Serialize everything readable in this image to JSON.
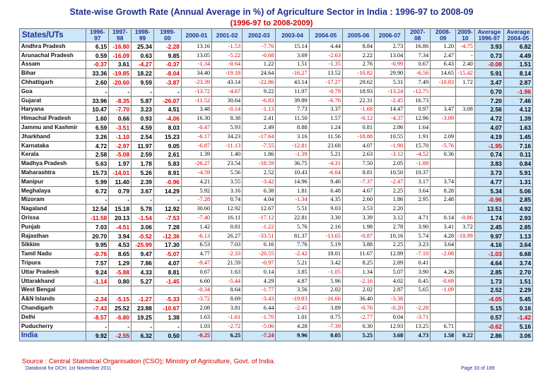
{
  "title": "State-wise Growth Rate (Annual Average in %) of Agriculture Sector in India : 1996-97 to 2008-09",
  "subtitle": "(1996-97 to 2008-2009)",
  "columns": [
    "States/UTs",
    "1996-97",
    "1997-98",
    "1998-99",
    "1999-00",
    "2000-01",
    "2001-02",
    "2002-03",
    "2003-04",
    "2004-05",
    "2005-06",
    "2006-07",
    "2007-08",
    "2008-09",
    "2009-10",
    "Average 1996-97",
    "Average 2004-05"
  ],
  "rows": [
    {
      "name": "Andhra Pradesh",
      "v": [
        "6.15",
        "-16.80",
        "25.34",
        "-2.28",
        "13.16",
        "-1.53",
        "-7.76",
        "15.14",
        "4.44",
        "8.84",
        "2.73",
        "16.86",
        "1.20",
        "-4.75",
        "3.93",
        "6.82"
      ]
    },
    {
      "name": "Arunachal Pradesh",
      "v": [
        "0.59",
        "-16.09",
        "0.63",
        "9.85",
        "13.05",
        "-5.22",
        "-0.68",
        "3.69",
        "-2.63",
        "2.22",
        "13.04",
        "7.34",
        "2.47",
        "-",
        "0.73",
        "4.49"
      ]
    },
    {
      "name": "Assam",
      "v": [
        "-0.37",
        "3.61",
        "-4.27",
        "-0.37",
        "-1.34",
        "-0.64",
        "1.22",
        "1.51",
        "-1.35",
        "2.76",
        "-0.99",
        "0.67",
        "6.43",
        "2.40",
        "-0.08",
        "1.51"
      ]
    },
    {
      "name": "Bihar",
      "v": [
        "33.36",
        "-19.85",
        "18.22",
        "-8.04",
        "34.40",
        "-19.18",
        "24.64",
        "-16.27",
        "13.52",
        "-10.82",
        "29.90",
        "-6.56",
        "14.65",
        "-15.42",
        "5.91",
        "8.14"
      ]
    },
    {
      "name": "Chhattigarh",
      "v": [
        "2.60",
        "-20.60",
        "9.59",
        "-3.87",
        "-23.39",
        "43.14",
        "-22.86",
        "43.14",
        "-17.27",
        "29.62",
        "5.31",
        "7.49",
        "-10.83",
        "1.72",
        "3.47",
        "2.87"
      ]
    },
    {
      "name": "Goa",
      "v": [
        "-",
        "-",
        "-",
        "-",
        "-13.72",
        "-4.67",
        "9.22",
        "11.97",
        "-0.79",
        "18.93",
        "-13.24",
        "-12.75",
        "",
        "",
        "0.70",
        "-1.96"
      ]
    },
    {
      "name": "Gujarat",
      "v": [
        "33.96",
        "-8.35",
        "5.87",
        "-26.07",
        "-11.52",
        "30.64",
        "-6.83",
        "39.89",
        "-6.76",
        "22.31",
        "-2.45",
        "16.73",
        "",
        "",
        "7.20",
        "7.46"
      ]
    },
    {
      "name": "Haryana",
      "v": [
        "10.47",
        "-7.70",
        "3.23",
        "4.51",
        "3.48",
        "-0.14",
        "-1.13",
        "7.73",
        "3.37",
        "-1.68",
        "14.47",
        "0.97",
        "3.47",
        "3.08",
        "2.56",
        "4.12"
      ]
    },
    {
      "name": "Himachal Pradesh",
      "v": [
        "1.60",
        "0.66",
        "0.93",
        "-4.06",
        "16.30",
        "8.38",
        "2.41",
        "11.50",
        "1.57",
        "-0.12",
        "-4.37",
        "12.96",
        "-3.09",
        "",
        "4.72",
        "1.39"
      ]
    },
    {
      "name": "Jammu and Kashmir",
      "v": [
        "6.59",
        "-3.51",
        "4.59",
        "8.03",
        "-0.47",
        "5.93",
        "2.49",
        "8.88",
        "1.24",
        "0.81",
        "2.86",
        "1.64",
        "",
        "",
        "4.07",
        "1.63"
      ]
    },
    {
      "name": "Jharkhand",
      "v": [
        "3.26",
        "-1.10",
        "2.54",
        "15.23",
        "-6.17",
        "34.23",
        "-17.64",
        "3.16",
        "11.56",
        "-18.88",
        "10.55",
        "1.91",
        "2.09",
        "",
        "4.19",
        "1.45"
      ]
    },
    {
      "name": "Karnataka",
      "v": [
        "4.72",
        "-2.97",
        "11.97",
        "9.05",
        "-6.87",
        "-11.13",
        "-7.55",
        "-12.81",
        "23.68",
        "4.07",
        "-1.90",
        "15.70",
        "-5.76",
        "",
        "-1.95",
        "7.16"
      ]
    },
    {
      "name": "Kerala",
      "v": [
        "2.58",
        "-5.08",
        "2.59",
        "2.61",
        "1.39",
        "1.40",
        "1.86",
        "-1.39",
        "5.21",
        "2.63",
        "-3.12",
        "-4.52",
        "0.36",
        "",
        "0.74",
        "0.11"
      ]
    },
    {
      "name": "Madhya Pradesh",
      "v": [
        "5.63",
        "1.97",
        "1.78",
        "5.83",
        "-26.27",
        "23.54",
        "-18.59",
        "36.75",
        "-4.31",
        "7.50",
        "2.05",
        "-1.88",
        "",
        "",
        "3.83",
        "0.84"
      ]
    },
    {
      "name": "Maharashtra",
      "v": [
        "15.73",
        "-14.01",
        "5.26",
        "8.91",
        "-4.59",
        "5.56",
        "2.52",
        "10.43",
        "-6.04",
        "8.81",
        "10.50",
        "10.37",
        "",
        "",
        "3.73",
        "5.91"
      ]
    },
    {
      "name": "Manipur",
      "v": [
        "5.99",
        "11.40",
        "2.39",
        "-0.96",
        "4.21",
        "3.55",
        "-3.42",
        "14.96",
        "9.46",
        "-7.37",
        "-2.47",
        "3.17",
        "3.74",
        "",
        "4.77",
        "1.31"
      ]
    },
    {
      "name": "Meghalaya",
      "v": [
        "6.72",
        "0.79",
        "3.67",
        "14.29",
        "5.92",
        "3.16",
        "6.38",
        "1.81",
        "6.48",
        "4.67",
        "2.25",
        "3.64",
        "8.28",
        "",
        "5.34",
        "5.06"
      ]
    },
    {
      "name": "Mizoram",
      "v": [
        "-",
        "-",
        "-",
        "-",
        "-7.28",
        "0.74",
        "4.04",
        "-1.34",
        "4.35",
        "2.60",
        "1.86",
        "2.95",
        "2.48",
        "",
        "-0.96",
        "2.85"
      ]
    },
    {
      "name": "Nagaland",
      "v": [
        "12.54",
        "15.18",
        "5.78",
        "12.92",
        "30.60",
        "12.92",
        "12.67",
        "5.51",
        "9.03",
        "3.53",
        "2.20",
        "",
        "",
        "",
        "13.51",
        "4.92"
      ]
    },
    {
      "name": "Orissa",
      "v": [
        "-11.58",
        "20.13",
        "-1.54",
        "-7.53",
        "-7.40",
        "16.11",
        "-17.12",
        "22.81",
        "3.30",
        "3.39",
        "3.12",
        "4.71",
        "0.14",
        "-0.86",
        "1.74",
        "2.93"
      ]
    },
    {
      "name": "Punjab",
      "v": [
        "7.03",
        "-4.51",
        "3.06",
        "7.28",
        "1.42",
        "0.81",
        "-1.22",
        "5.76",
        "2.16",
        "1.98",
        "2.78",
        "3.90",
        "3.41",
        "3.72",
        "2.45",
        "2.85"
      ]
    },
    {
      "name": "Rajasthan",
      "v": [
        "20.70",
        "3.94",
        "-0.52",
        "-12.36",
        "-6.13",
        "26.27",
        "-33.51",
        "81.37",
        "-13.65",
        "-0.87",
        "10.16",
        "5.74",
        "4.28",
        "-18.99",
        "9.97",
        "1.13"
      ]
    },
    {
      "name": "Sikkim",
      "v": [
        "9.95",
        "4.53",
        "-25.99",
        "17.30",
        "6.53",
        "7.03",
        "6.16",
        "7.76",
        "5.19",
        "3.88",
        "2.25",
        "3.23",
        "3.64",
        "",
        "4.16",
        "3.64"
      ]
    },
    {
      "name": "Tamil Nadu",
      "v": [
        "-0.76",
        "8.65",
        "9.47",
        "-5.07",
        "4.77",
        "-2.33",
        "-20.55",
        "-2.42",
        "18.01",
        "11.67",
        "12.89",
        "-7.10",
        "-2.08",
        "",
        "-1.03",
        "6.68"
      ]
    },
    {
      "name": "Tripura",
      "v": [
        "7.57",
        "1.29",
        "7.86",
        "4.07",
        "-9.47",
        "21.59",
        "-0.97",
        "5.21",
        "3.42",
        "8.25",
        "2.89",
        "0.41",
        "",
        "",
        "4.64",
        "3.74"
      ]
    },
    {
      "name": "Uttar Pradesh",
      "v": [
        "9.24",
        "-5.88",
        "4.33",
        "8.81",
        "0.67",
        "1.63",
        "0.14",
        "3.85",
        "-1.05",
        "1.34",
        "5.07",
        "3.90",
        "4.26",
        "",
        "2.85",
        "2.70"
      ]
    },
    {
      "name": "Uttarakhand",
      "v": [
        "-1.14",
        "0.80",
        "5.27",
        "-1.45",
        "6.60",
        "-5.44",
        "4.29",
        "4.87",
        "5.96",
        "-2.16",
        "4.02",
        "0.45",
        "-0.69",
        "",
        "1.73",
        "1.51"
      ]
    },
    {
      "name": "West Bengal",
      "v": [
        "",
        "",
        "",
        "",
        "-0.34",
        "8.64",
        "-1.77",
        "3.56",
        "2.02",
        "2.02",
        "2.87",
        "5.65",
        "-1.09",
        "",
        "2.52",
        "2.29"
      ]
    },
    {
      "name": "A&N Islands",
      "v": [
        "-2.34",
        "-5.15",
        "-1.27",
        "-5.33",
        "-3.72",
        "8.69",
        "-3.43",
        "-19.83",
        "-16.66",
        "36.40",
        "-3.38",
        "",
        "",
        "",
        "-4.05",
        "5.45"
      ]
    },
    {
      "name": "Chandigarh",
      "v": [
        "-7.43",
        "25.52",
        "23.88",
        "-10.67",
        "2.08",
        "3.81",
        "6.44",
        "-2.45",
        "3.89",
        "-0.76",
        "-0.20",
        "-2.28",
        "",
        "",
        "5.15",
        "0.16"
      ]
    },
    {
      "name": "Delhi",
      "v": [
        "-8.57",
        "-6.80",
        "19.25",
        "1.38",
        "1.63",
        "-1.61",
        "-1.70",
        "1.01",
        "0.75",
        "-2.77",
        "0.04",
        "-3.71",
        "",
        "",
        "0.57",
        "-1.42"
      ]
    },
    {
      "name": "Puducherry",
      "v": [
        "-",
        "-",
        "-",
        "-",
        "1.03",
        "-2.72",
        "-5.06",
        "4.28",
        "-7.39",
        "0.30",
        "12.93",
        "13.25",
        "6.71",
        "",
        "-0.62",
        "5.16"
      ]
    }
  ],
  "total": {
    "name": "India",
    "v": [
      "9.92",
      "-2.55",
      "6.32",
      "0.50",
      "-0.25",
      "6.25",
      "-7.24",
      "9.96",
      "0.05",
      "5.25",
      "3.68",
      "4.73",
      "1.58",
      "0.22",
      "2.86",
      "3.06"
    ]
  },
  "source": "Source : Central Statistical Organisation (CSO); Ministry of Agriculture, Govt. of India.",
  "footer_left": "Databook for DCH; 1st November 2011",
  "footer_right": "Page 33 of 189"
}
